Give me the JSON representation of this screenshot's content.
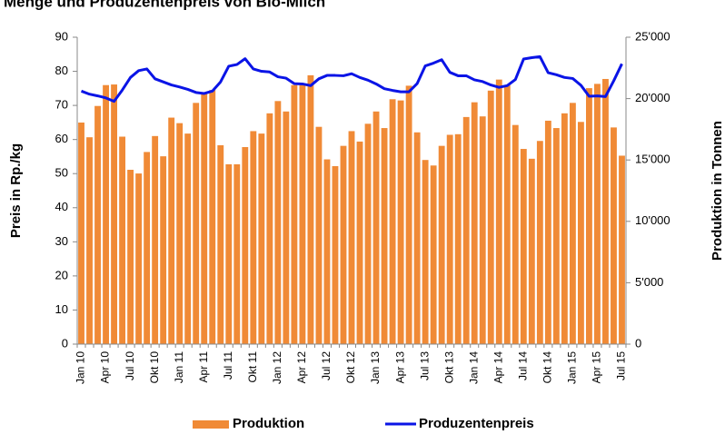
{
  "chart_data": {
    "type": "bar_line",
    "title": "Menge und Produzentenpreis von Bio-Milch",
    "ylabel": "Preis in Rp./kg",
    "y2label": "Produktion in Tonnen",
    "categories": [
      "Jan 10",
      null,
      null,
      "Apr 10",
      null,
      null,
      "Jul 10",
      null,
      null,
      "Okt 10",
      null,
      null,
      "Jan 11",
      null,
      null,
      "Apr 11",
      null,
      null,
      "Jul 11",
      null,
      null,
      "Okt 11",
      null,
      null,
      "Jan 12",
      null,
      null,
      "Apr 12",
      null,
      null,
      "Jul 12",
      null,
      null,
      "Okt 12",
      null,
      null,
      "Jan 13",
      null,
      null,
      "Apr 13",
      null,
      null,
      "Jul 13",
      null,
      null,
      "Okt 13",
      null,
      null,
      "Jan 14",
      null,
      null,
      "Apr 14",
      null,
      null,
      "Jul 14",
      null,
      null,
      "Okt 14",
      null,
      null,
      "Jan 15",
      null,
      null,
      "Apr 15",
      null,
      null,
      "Jul 15"
    ],
    "series": [
      {
        "name": "Produktion",
        "type": "bar",
        "axis": "y2",
        "color": "#f08a36",
        "values": [
          18050,
          16850,
          19400,
          21100,
          21150,
          16900,
          14200,
          13900,
          15650,
          16950,
          15300,
          18450,
          18000,
          17150,
          19650,
          20450,
          20700,
          16200,
          14650,
          14650,
          16050,
          17350,
          17150,
          18800,
          19800,
          18950,
          21100,
          21100,
          21900,
          17700,
          15050,
          14500,
          16150,
          17350,
          16500,
          17950,
          18950,
          17600,
          19950,
          19850,
          21050,
          17250,
          15000,
          14550,
          16150,
          17050,
          17100,
          18500,
          19700,
          18550,
          20650,
          21550,
          21100,
          17850,
          15900,
          15100,
          16550,
          18200,
          17600,
          18800,
          19650,
          18100,
          20850,
          21200,
          21600,
          17650,
          15350
        ]
      },
      {
        "name": "Produzentenpreis",
        "type": "line",
        "axis": "y",
        "color": "#0a14e6",
        "values": [
          74.2,
          73.3,
          72.8,
          72.2,
          71.2,
          74.5,
          78.2,
          80.2,
          80.7,
          77.8,
          76.9,
          76,
          75.4,
          74.7,
          73.8,
          73.5,
          74.2,
          76.9,
          81.5,
          82,
          83.7,
          80.7,
          80,
          79.8,
          78.4,
          78,
          76.4,
          76.3,
          75.8,
          77.8,
          78.8,
          78.8,
          78.7,
          79.3,
          78.2,
          77.4,
          76.3,
          74.9,
          74.4,
          74,
          74,
          76.4,
          81.6,
          82.4,
          83.4,
          79.7,
          78.7,
          78.7,
          77.5,
          77,
          76,
          75.3,
          75.8,
          77.6,
          83.6,
          84,
          84.3,
          79.6,
          79,
          78.2,
          77.9,
          75.9,
          72.7,
          72.8,
          72.6,
          77.2,
          82.2
        ]
      }
    ],
    "ylim": [
      0,
      90
    ],
    "yticks": [
      0,
      10,
      20,
      30,
      40,
      50,
      60,
      70,
      80,
      90
    ],
    "y2lim": [
      0,
      25000
    ],
    "y2ticks": [
      0,
      {
        "value": 5000,
        "label": "5'000"
      },
      {
        "value": 10000,
        "label": "10'000"
      },
      {
        "value": 15000,
        "label": "15'000"
      },
      {
        "value": 20000,
        "label": "20'000"
      },
      {
        "value": 25000,
        "label": "25'000"
      }
    ],
    "grid": false,
    "legend": "bottom"
  }
}
